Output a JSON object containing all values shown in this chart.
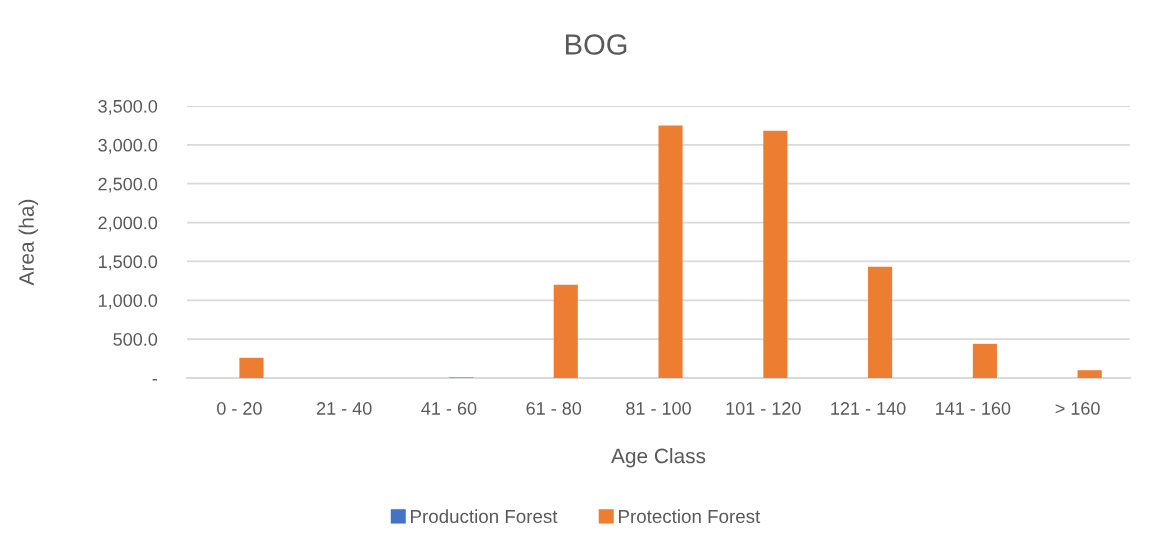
{
  "chart_data": {
    "type": "bar",
    "title": "BOG",
    "xlabel": "Age Class",
    "ylabel": "Area (ha)",
    "categories": [
      "0 - 20",
      "21 - 40",
      "41 - 60",
      "61 - 80",
      "81 - 100",
      "101 - 120",
      "121 - 140",
      "141 - 160",
      "> 160"
    ],
    "series": [
      {
        "name": "Production Forest",
        "color": "#4472c4",
        "values": [
          null,
          null,
          null,
          null,
          null,
          null,
          null,
          null,
          null
        ]
      },
      {
        "name": "Protection Forest",
        "color": "#ed7d31",
        "values": [
          260,
          null,
          10,
          1200,
          3250,
          3180,
          1430,
          440,
          100
        ]
      }
    ],
    "ylim": [
      0,
      3500
    ],
    "yticks": [
      {
        "value": 0,
        "label": "-"
      },
      {
        "value": 500,
        "label": "500.0"
      },
      {
        "value": 1000,
        "label": "1,000.0"
      },
      {
        "value": 1500,
        "label": "1,500.0"
      },
      {
        "value": 2000,
        "label": "2,000.0"
      },
      {
        "value": 2500,
        "label": "2,500.0"
      },
      {
        "value": 3000,
        "label": "3,000.0"
      },
      {
        "value": 3500,
        "label": "3,500.0"
      }
    ],
    "grid": "y",
    "legend": "bottom"
  }
}
